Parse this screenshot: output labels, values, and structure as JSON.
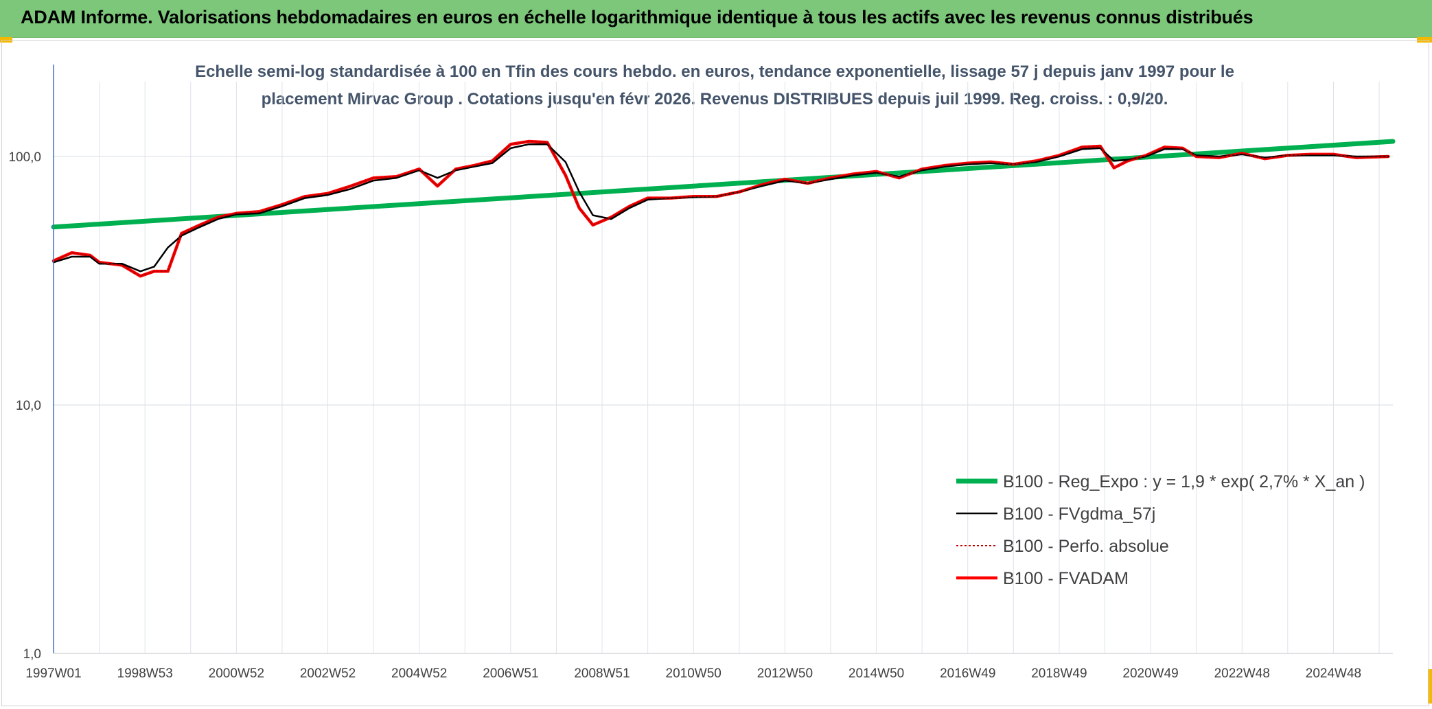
{
  "banner": {
    "title": "ADAM Informe. Valorisations hebdomadaires en euros en échelle logarithmique identique à tous les actifs avec les revenus connus distribués"
  },
  "colors": {
    "banner_bg": "#7cc77a",
    "accent_corner": "#f5b800",
    "reg_line": "#00b050",
    "fvgdma_line": "#000000",
    "perfo_line": "#c00000",
    "fvadam_line": "#ff0000",
    "grid": "#dde3ea",
    "axis": "#4472c4",
    "subtitle": "#44546a"
  },
  "chart_data": {
    "type": "line",
    "subtitle_lines": [
      "Echelle semi-log standardisée à 100 en Tfin des cours hebdo. en euros, tendance exponentielle, lissage 57 j depuis janv 1997 pour le",
      "placement Mirvac Group . Cotations jusqu'en févr 2026. Revenus DISTRIBUES depuis juil 1999. Reg. croiss. : 0,9/20."
    ],
    "y_scale": "log",
    "ylim": [
      1,
      200
    ],
    "xlim": [
      1997.0,
      2026.3
    ],
    "y_ticks": [
      {
        "value": 1,
        "label": "1,0"
      },
      {
        "value": 10,
        "label": "10,0"
      },
      {
        "value": 100,
        "label": "100,0"
      }
    ],
    "x_ticks": [
      {
        "value": 1997.0,
        "label": "1997W01"
      },
      {
        "value": 1999.0,
        "label": "1998W53"
      },
      {
        "value": 2001.0,
        "label": "2000W52"
      },
      {
        "value": 2003.0,
        "label": "2002W52"
      },
      {
        "value": 2005.0,
        "label": "2004W52"
      },
      {
        "value": 2007.0,
        "label": "2006W51"
      },
      {
        "value": 2009.0,
        "label": "2008W51"
      },
      {
        "value": 2011.0,
        "label": "2010W50"
      },
      {
        "value": 2013.0,
        "label": "2012W50"
      },
      {
        "value": 2015.0,
        "label": "2014W50"
      },
      {
        "value": 2017.0,
        "label": "2016W49"
      },
      {
        "value": 2019.0,
        "label": "2018W49"
      },
      {
        "value": 2021.0,
        "label": "2020W49"
      },
      {
        "value": 2023.0,
        "label": "2022W48"
      },
      {
        "value": 2025.0,
        "label": "2024W48"
      }
    ],
    "legend_position": "lower-right",
    "series": [
      {
        "name": "B100 - Reg_Expo : y = 1,9 * exp( 2,7% *  X_an )",
        "color": "#00b050",
        "x": [
          1997.0,
          2026.3
        ],
        "y": [
          52,
          115
        ]
      },
      {
        "name": "B100 - FVgdma_57j",
        "color": "#000000",
        "x": [
          1997.0,
          1997.4,
          1997.8,
          1998.0,
          1998.5,
          1998.9,
          1999.2,
          1999.5,
          1999.8,
          2000.2,
          2000.6,
          2001.0,
          2001.5,
          2002.0,
          2002.5,
          2003.0,
          2003.5,
          2004.0,
          2004.5,
          2005.0,
          2005.4,
          2005.8,
          2006.2,
          2006.6,
          2007.0,
          2007.4,
          2007.8,
          2008.2,
          2008.5,
          2008.8,
          2009.2,
          2009.6,
          2010.0,
          2010.5,
          2011.0,
          2011.5,
          2012.0,
          2012.5,
          2013.0,
          2013.5,
          2014.0,
          2014.5,
          2015.0,
          2015.5,
          2016.0,
          2016.5,
          2017.0,
          2017.5,
          2018.0,
          2018.5,
          2019.0,
          2019.5,
          2019.9,
          2020.2,
          2020.5,
          2020.9,
          2021.3,
          2021.7,
          2022.0,
          2022.5,
          2023.0,
          2023.5,
          2024.0,
          2024.5,
          2025.0,
          2025.5,
          2026.2
        ],
        "y": [
          37.5,
          39.5,
          39.5,
          37.0,
          37.0,
          34.5,
          36.0,
          43.0,
          48.0,
          52.0,
          56.0,
          58.5,
          59.0,
          63.0,
          68.0,
          70.0,
          74.0,
          80.0,
          82.0,
          88.0,
          82.0,
          88.0,
          91.0,
          94.0,
          108.0,
          112.0,
          112.0,
          95.0,
          72.0,
          58.0,
          56.0,
          62.0,
          67.0,
          68.0,
          68.5,
          69.0,
          72.0,
          76.0,
          80.0,
          78.0,
          81.0,
          84.0,
          86.0,
          83.0,
          88.0,
          91.0,
          93.0,
          94.0,
          93.0,
          95.0,
          100.0,
          107.0,
          108.0,
          96.0,
          97.0,
          100.0,
          107.0,
          107.0,
          101.0,
          100.0,
          102.0,
          99.0,
          101.0,
          101.0,
          101.0,
          100.0,
          100.0
        ]
      },
      {
        "name": "B100 - Perfo. absolue",
        "color": "#c00000",
        "x": [
          1997.0,
          1997.4,
          1997.8,
          1998.0,
          1998.5,
          1998.9,
          1999.2,
          1999.5,
          1999.8,
          2000.2,
          2000.6,
          2001.0,
          2001.5,
          2002.0,
          2002.5,
          2003.0,
          2003.5,
          2004.0,
          2004.5,
          2005.0,
          2005.4,
          2005.8,
          2006.2,
          2006.6,
          2007.0,
          2007.4,
          2007.8,
          2008.2,
          2008.5,
          2008.8,
          2009.2,
          2009.6,
          2010.0,
          2010.5,
          2011.0,
          2011.5,
          2012.0,
          2012.5,
          2013.0,
          2013.5,
          2014.0,
          2014.5,
          2015.0,
          2015.5,
          2016.0,
          2016.5,
          2017.0,
          2017.5,
          2018.0,
          2018.5,
          2019.0,
          2019.5,
          2019.9,
          2020.2,
          2020.5,
          2020.9,
          2021.3,
          2021.7,
          2022.0,
          2022.5,
          2023.0,
          2023.5,
          2024.0,
          2024.5,
          2025.0,
          2025.5,
          2026.2
        ],
        "y": [
          38.0,
          41.0,
          40.0,
          37.5,
          36.5,
          33.0,
          34.5,
          34.5,
          49.0,
          53.0,
          57.0,
          59.0,
          60.0,
          64.0,
          69.0,
          71.0,
          76.0,
          82.0,
          83.0,
          89.0,
          76.0,
          89.0,
          92.0,
          96.0,
          112.0,
          115.0,
          114.0,
          84.0,
          62.0,
          53.0,
          57.0,
          63.0,
          68.0,
          68.0,
          69.0,
          69.0,
          72.0,
          77.0,
          81.0,
          78.0,
          82.0,
          85.0,
          87.0,
          82.0,
          89.0,
          92.0,
          94.0,
          95.0,
          93.0,
          96.0,
          101.0,
          109.0,
          110.0,
          90.0,
          96.0,
          101.0,
          109.0,
          108.0,
          100.0,
          99.0,
          103.0,
          98.0,
          101.0,
          102.0,
          102.0,
          99.0,
          100.0
        ]
      },
      {
        "name": "B100 - FVADAM",
        "color": "#ff0000",
        "x": [
          1997.0,
          1997.4,
          1997.8,
          1998.0,
          1998.5,
          1998.9,
          1999.2,
          1999.5,
          1999.8,
          2000.2,
          2000.6,
          2001.0,
          2001.5,
          2002.0,
          2002.5,
          2003.0,
          2003.5,
          2004.0,
          2004.5,
          2005.0,
          2005.4,
          2005.8,
          2006.2,
          2006.6,
          2007.0,
          2007.4,
          2007.8,
          2008.2,
          2008.5,
          2008.8,
          2009.2,
          2009.6,
          2010.0,
          2010.5,
          2011.0,
          2011.5,
          2012.0,
          2012.5,
          2013.0,
          2013.5,
          2014.0,
          2014.5,
          2015.0,
          2015.5,
          2016.0,
          2016.5,
          2017.0,
          2017.5,
          2018.0,
          2018.5,
          2019.0,
          2019.5,
          2019.9,
          2020.2,
          2020.5,
          2020.9,
          2021.3,
          2021.7,
          2022.0,
          2022.5,
          2023.0,
          2023.5,
          2024.0,
          2024.5,
          2025.0,
          2025.5,
          2026.2
        ],
        "y": [
          38.0,
          41.0,
          40.0,
          37.5,
          36.5,
          33.0,
          34.5,
          34.5,
          49.0,
          53.0,
          57.0,
          59.0,
          60.0,
          64.0,
          69.0,
          71.0,
          76.0,
          82.0,
          83.0,
          89.0,
          76.0,
          89.0,
          92.0,
          96.0,
          112.0,
          115.0,
          114.0,
          84.0,
          62.0,
          53.0,
          57.0,
          63.0,
          68.0,
          68.0,
          69.0,
          69.0,
          72.0,
          77.0,
          81.0,
          78.0,
          82.0,
          85.0,
          87.0,
          82.0,
          89.0,
          92.0,
          94.0,
          95.0,
          93.0,
          96.0,
          101.0,
          109.0,
          110.0,
          90.0,
          96.0,
          101.0,
          109.0,
          108.0,
          100.0,
          99.0,
          103.0,
          98.0,
          101.0,
          102.0,
          102.0,
          99.0,
          100.0
        ]
      }
    ]
  }
}
